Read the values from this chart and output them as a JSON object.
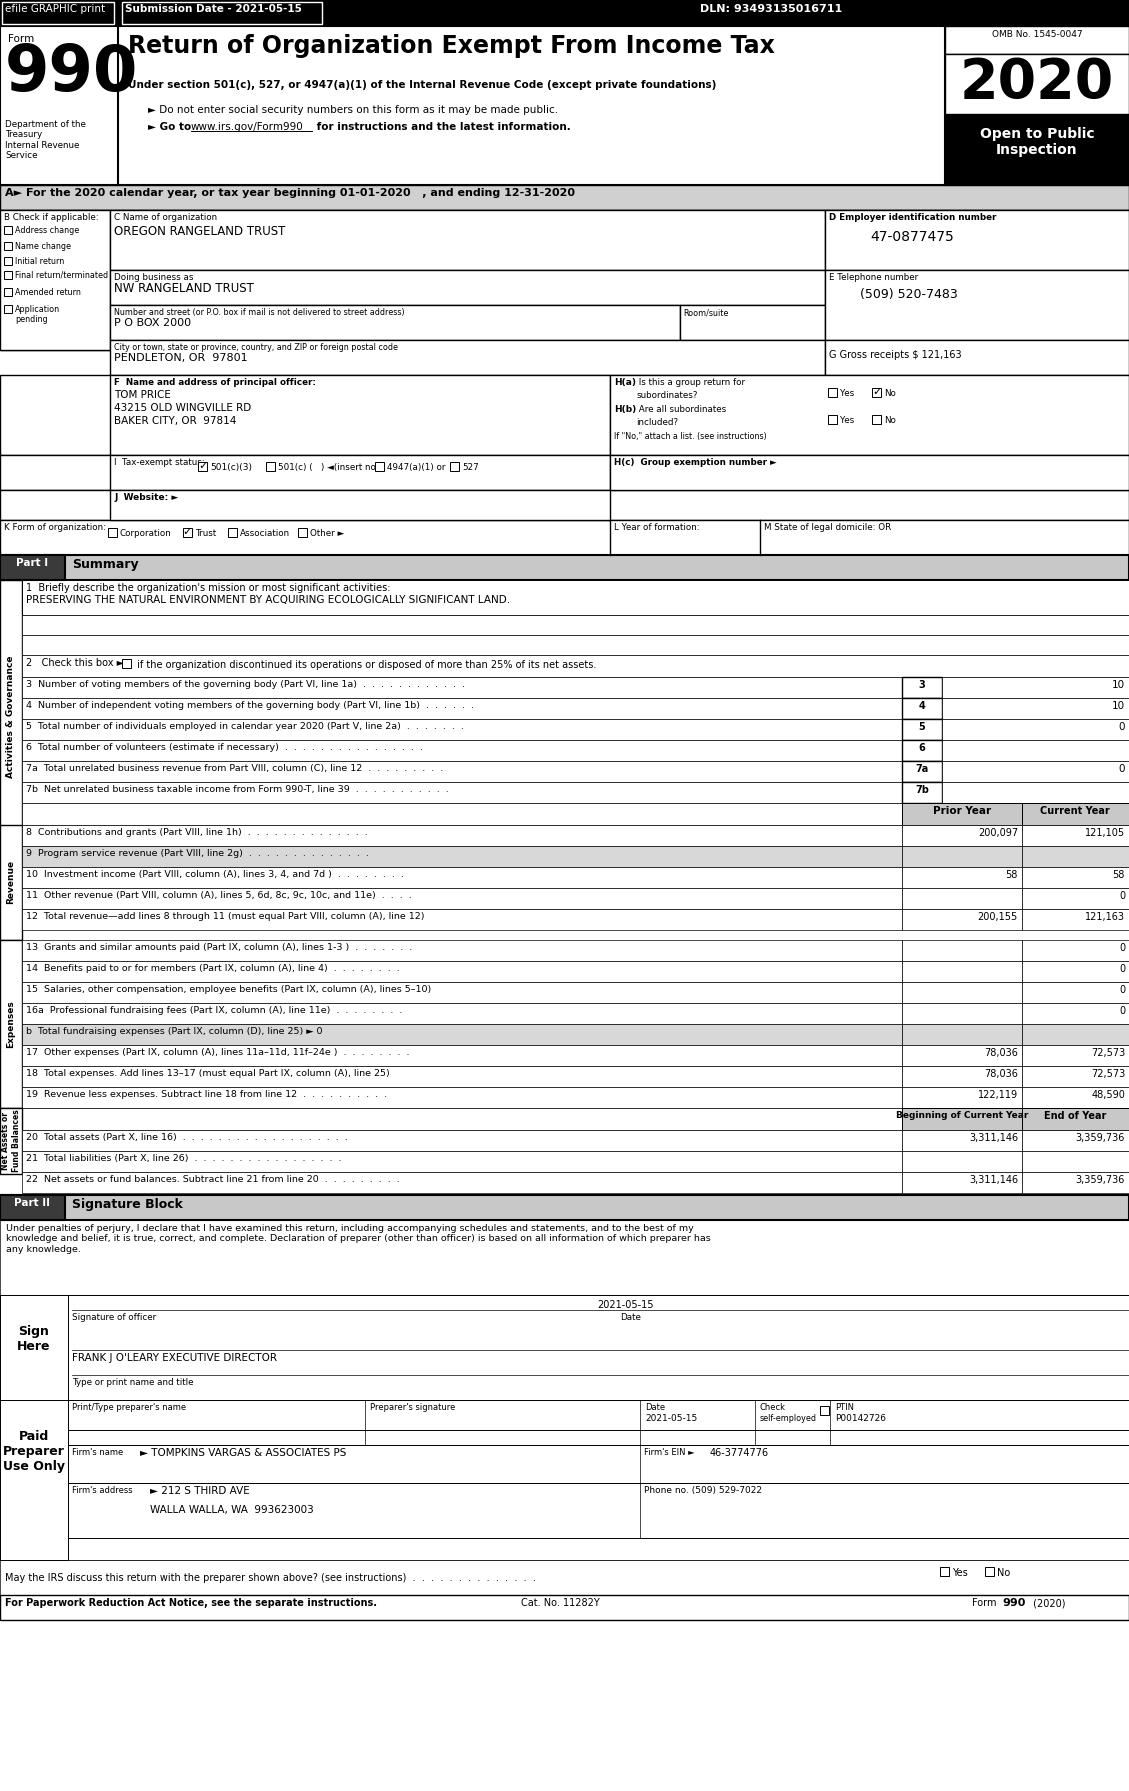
{
  "title": "Return of Organization Exempt From Income Tax",
  "omb": "OMB No. 1545-0047",
  "year": "2020",
  "org_name": "OREGON RANGELAND TRUST",
  "dba_name": "NW RANGELAND TRUST",
  "address": "P O BOX 2000",
  "city": "PENDLETON, OR  97801",
  "ein": "47-0877475",
  "phone": "(509) 520-7483",
  "gross_receipts": "121,163",
  "officer_name": "TOM PRICE",
  "officer_addr1": "43215 OLD WINGVILLE RD",
  "officer_addr2": "BAKER CITY, OR  97814",
  "ptin": "P00142726",
  "firm_ein": "46-3774776",
  "firm_phone": "(509) 529-7022",
  "lines_3to7": [
    {
      "num": "3",
      "text": "Number of voting members of the governing body (Part VI, line 1a)  .  .  .  .  .  .  .  .  .  .  .  .",
      "value": "10"
    },
    {
      "num": "4",
      "text": "Number of independent voting members of the governing body (Part VI, line 1b)  .  .  .  .  .  .",
      "value": "10"
    },
    {
      "num": "5",
      "text": "Total number of individuals employed in calendar year 2020 (Part V, line 2a)  .  .  .  .  .  .  .",
      "value": "0"
    },
    {
      "num": "6",
      "text": "Total number of volunteers (estimate if necessary)  .  .  .  .  .  .  .  .  .  .  .  .  .  .  .  .",
      "value": ""
    },
    {
      "num": "7a",
      "text": "Total unrelated business revenue from Part VIII, column (C), line 12  .  .  .  .  .  .  .  .  .",
      "value": "0"
    },
    {
      "num": "7b",
      "text": "Net unrelated business taxable income from Form 990-T, line 39  .  .  .  .  .  .  .  .  .  .  .",
      "value": ""
    }
  ],
  "revenue_lines": [
    {
      "num": "8",
      "text": "Contributions and grants (Part VIII, line 1h)  .  .  .  .  .  .  .  .  .  .  .  .  .  .",
      "prior": "200,097",
      "current": "121,105",
      "shaded": false
    },
    {
      "num": "9",
      "text": "Program service revenue (Part VIII, line 2g)  .  .  .  .  .  .  .  .  .  .  .  .  .  .",
      "prior": "",
      "current": "",
      "shaded": true
    },
    {
      "num": "10",
      "text": "Investment income (Part VIII, column (A), lines 3, 4, and 7d )  .  .  .  .  .  .  .  .",
      "prior": "58",
      "current": "58",
      "shaded": false
    },
    {
      "num": "11",
      "text": "Other revenue (Part VIII, column (A), lines 5, 6d, 8c, 9c, 10c, and 11e)  .  .  .  .",
      "prior": "",
      "current": "0",
      "shaded": false
    },
    {
      "num": "12",
      "text": "Total revenue—add lines 8 through 11 (must equal Part VIII, column (A), line 12)",
      "prior": "200,155",
      "current": "121,163",
      "shaded": false
    }
  ],
  "expense_lines": [
    {
      "num": "13",
      "text": "Grants and similar amounts paid (Part IX, column (A), lines 1-3 )  .  .  .  .  .  .  .",
      "prior": "",
      "current": "0",
      "shaded": false
    },
    {
      "num": "14",
      "text": "Benefits paid to or for members (Part IX, column (A), line 4)  .  .  .  .  .  .  .  .",
      "prior": "",
      "current": "0",
      "shaded": false
    },
    {
      "num": "15",
      "text": "Salaries, other compensation, employee benefits (Part IX, column (A), lines 5–10)",
      "prior": "",
      "current": "0",
      "shaded": false
    },
    {
      "num": "16a",
      "text": "Professional fundraising fees (Part IX, column (A), line 11e)  .  .  .  .  .  .  .  .",
      "prior": "",
      "current": "0",
      "shaded": false
    },
    {
      "num": "b",
      "text": "Total fundraising expenses (Part IX, column (D), line 25) ► 0",
      "prior": "",
      "current": "",
      "shaded": true
    },
    {
      "num": "17",
      "text": "Other expenses (Part IX, column (A), lines 11a–11d, 11f–24e )  .  .  .  .  .  .  .  .",
      "prior": "78,036",
      "current": "72,573",
      "shaded": false
    },
    {
      "num": "18",
      "text": "Total expenses. Add lines 13–17 (must equal Part IX, column (A), line 25)",
      "prior": "78,036",
      "current": "72,573",
      "shaded": false
    },
    {
      "num": "19",
      "text": "Revenue less expenses. Subtract line 18 from line 12  .  .  .  .  .  .  .  .  .  .",
      "prior": "122,119",
      "current": "48,590",
      "shaded": false
    }
  ],
  "netasset_lines": [
    {
      "num": "20",
      "text": "Total assets (Part X, line 16)  .  .  .  .  .  .  .  .  .  .  .  .  .  .  .  .  .  .  .",
      "begin": "3,311,146",
      "end": "3,359,736"
    },
    {
      "num": "21",
      "text": "Total liabilities (Part X, line 26)  .  .  .  .  .  .  .  .  .  .  .  .  .  .  .  .  .",
      "begin": "",
      "end": ""
    },
    {
      "num": "22",
      "text": "Net assets or fund balances. Subtract line 21 from line 20  .  .  .  .  .  .  .  .  .",
      "begin": "3,311,146",
      "end": "3,359,736"
    }
  ],
  "sig_penalty": "Under penalties of perjury, I declare that I have examined this return, including accompanying schedules and statements, and to the best of my\nknowledge and belief, it is true, correct, and complete. Declaration of preparer (other than officer) is based on all information of which preparer has\nany knowledge.",
  "officer_title": "FRANK J O'LEARY EXECUTIVE DIRECTOR"
}
